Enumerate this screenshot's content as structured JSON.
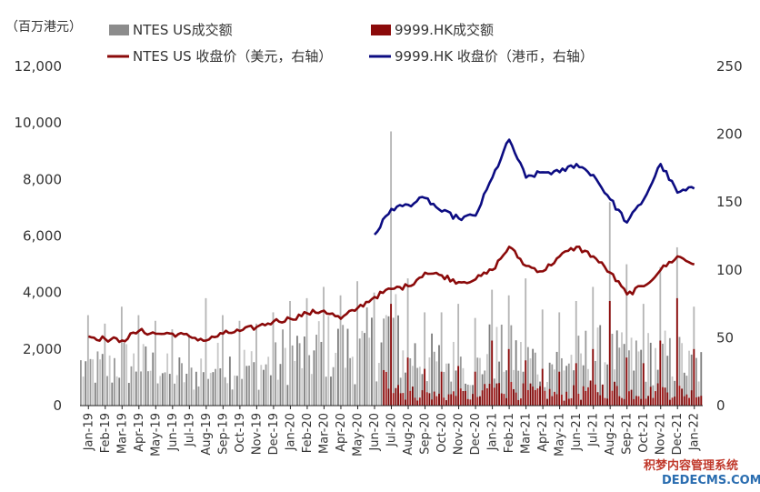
{
  "chart_data": {
    "type": "bar+line",
    "unit_label": "（百万港元）",
    "left_axis": {
      "ylim": [
        0,
        12000
      ],
      "ticks": [
        "0",
        "2,000",
        "4,000",
        "6,000",
        "8,000",
        "10,000",
        "12,000"
      ]
    },
    "right_axis": {
      "ylim": [
        0,
        250
      ],
      "ticks": [
        "0",
        "50",
        "100",
        "150",
        "200",
        "250"
      ]
    },
    "x_categories": [
      "Jan-19",
      "Feb-19",
      "Mar-19",
      "Apr-19",
      "May-19",
      "Jun-19",
      "Jul-19",
      "Aug-19",
      "Sep-19",
      "Oct-19",
      "Nov-19",
      "Dec-19",
      "Jan-20",
      "Feb-20",
      "Mar-20",
      "Apr-20",
      "May-20",
      "Jun-20",
      "Jul-20",
      "Aug-20",
      "Sep-20",
      "Oct-20",
      "Nov-20",
      "Dec-20",
      "Jan-21",
      "Feb-21",
      "Mar-21",
      "Apr-21",
      "May-21",
      "Jun-21",
      "Jul-21",
      "Aug-21",
      "Sep-21",
      "Oct-21",
      "Nov-21",
      "Dec-21",
      "Jan-22"
    ],
    "legend": [
      {
        "label": "NTES US成交额",
        "color": "#8c8c8c",
        "kind": "bar"
      },
      {
        "label": "9999.HK成交额",
        "color": "#8b0a0a",
        "kind": "bar"
      },
      {
        "label": "NTES US 收盘价（美元，右轴）",
        "color": "#8b0a0a",
        "kind": "line"
      },
      {
        "label": "9999.HK 收盘价（港币，右轴）",
        "color": "#0c0c82",
        "kind": "line"
      }
    ],
    "series": [
      {
        "name": "NTES US成交额",
        "axis": "left",
        "monthly_typical": [
          1500,
          1450,
          1700,
          1600,
          1500,
          1300,
          1200,
          1500,
          1600,
          1600,
          1500,
          1600,
          2000,
          2000,
          2300,
          2200,
          2100,
          2400,
          2900,
          2000,
          1800,
          1700,
          1700,
          1500,
          2100,
          2000,
          1800,
          1700,
          1700,
          1800,
          2000,
          1900,
          1800,
          1900,
          1900,
          1800,
          1500
        ],
        "monthly_peak": [
          3200,
          2900,
          3500,
          3200,
          3000,
          2700,
          2500,
          3800,
          3200,
          3000,
          2900,
          3300,
          3700,
          3800,
          4200,
          3900,
          4400,
          4000,
          9700,
          4500,
          3300,
          3300,
          3600,
          3100,
          4100,
          3900,
          4500,
          3400,
          3300,
          3700,
          4200,
          7200,
          5000,
          3600,
          4900,
          5600,
          3500
        ]
      },
      {
        "name": "9999.HK成交额",
        "axis": "left",
        "monthly_typical": [
          0,
          0,
          0,
          0,
          0,
          0,
          0,
          0,
          0,
          0,
          0,
          0,
          0,
          0,
          0,
          0,
          0,
          0,
          1000,
          500,
          450,
          400,
          420,
          380,
          700,
          650,
          550,
          480,
          450,
          500,
          620,
          650,
          520,
          520,
          580,
          560,
          450
        ],
        "monthly_peak": [
          0,
          0,
          0,
          0,
          0,
          0,
          0,
          0,
          0,
          0,
          0,
          0,
          0,
          0,
          0,
          0,
          0,
          0,
          3600,
          1700,
          1300,
          1200,
          1400,
          1200,
          2300,
          2000,
          1600,
          1300,
          1200,
          1500,
          2000,
          3700,
          1700,
          1500,
          2300,
          3800,
          2000
        ]
      },
      {
        "name": "NTES US 收盘价（美元，右轴）",
        "axis": "right",
        "x": [
          "Jan-19",
          "Feb-19",
          "Mar-19",
          "Apr-19",
          "May-19",
          "Jun-19",
          "Jul-19",
          "Aug-19",
          "Sep-19",
          "Oct-19",
          "Nov-19",
          "Dec-19",
          "Jan-20",
          "Feb-20",
          "Mar-20",
          "Apr-20",
          "May-20",
          "Jun-20",
          "Jul-20",
          "Aug-20",
          "Sep-20",
          "Oct-20",
          "Nov-20",
          "Dec-20",
          "Jan-21",
          "Feb-21",
          "Mar-21",
          "Apr-21",
          "May-21",
          "Jun-21",
          "Jul-21",
          "Aug-21",
          "Sep-21",
          "Oct-21",
          "Nov-21",
          "Dec-21",
          "Jan-22"
        ],
        "values": [
          51,
          49,
          48,
          55,
          53,
          53,
          51,
          48,
          53,
          55,
          58,
          62,
          64,
          68,
          70,
          64,
          72,
          80,
          86,
          88,
          98,
          96,
          91,
          93,
          100,
          117,
          103,
          99,
          110,
          117,
          110,
          98,
          82,
          88,
          100,
          110,
          104
        ]
      },
      {
        "name": "9999.HK 收盘价（港币，右轴）",
        "axis": "right",
        "x": [
          "Jun-20",
          "Jul-20",
          "Aug-20",
          "Sep-20",
          "Oct-20",
          "Nov-20",
          "Dec-20",
          "Jan-21",
          "Feb-21",
          "Mar-21",
          "Apr-21",
          "May-21",
          "Jun-21",
          "Jul-21",
          "Aug-21",
          "Sep-21",
          "Oct-21",
          "Nov-21",
          "Dec-21",
          "Jan-22"
        ],
        "values": [
          126,
          145,
          148,
          153,
          143,
          138,
          140,
          168,
          196,
          168,
          172,
          172,
          178,
          170,
          152,
          135,
          152,
          178,
          157,
          160
        ]
      }
    ]
  },
  "watermark": {
    "line1": "积梦内容管理系统",
    "line2": "DEDECMS.COM"
  }
}
